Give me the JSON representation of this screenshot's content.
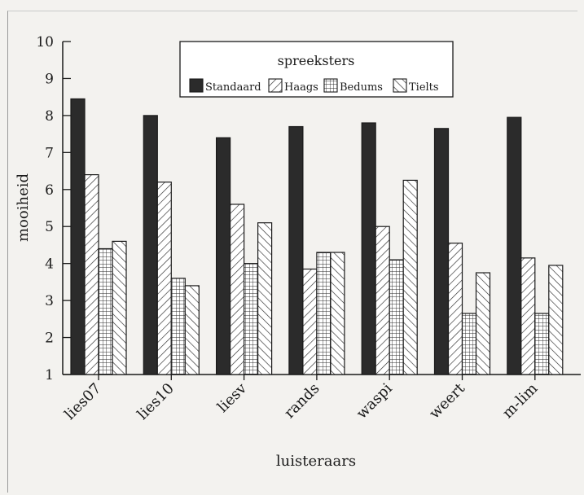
{
  "chart_data": {
    "type": "bar",
    "title": "",
    "xlabel": "luisteraars",
    "ylabel": "mooiheid",
    "ylim": [
      1,
      10
    ],
    "yticks": [
      1,
      2,
      3,
      4,
      5,
      6,
      7,
      8,
      9,
      10
    ],
    "grid": false,
    "legend": {
      "title": "spreeksters",
      "placement": "top-center"
    },
    "categories": [
      "lies07",
      "lies10",
      "liesv",
      "rands",
      "waspi",
      "weert",
      "m-lim"
    ],
    "series": [
      {
        "name": "Standaard",
        "pattern": "solid",
        "color": "#2b2b2b",
        "values": [
          8.45,
          8.0,
          7.4,
          7.7,
          7.8,
          7.65,
          7.95
        ]
      },
      {
        "name": "Haags",
        "pattern": "diagonal-forward",
        "color": "#2b2b2b",
        "values": [
          6.4,
          6.2,
          5.6,
          3.85,
          5.0,
          4.55,
          4.15
        ]
      },
      {
        "name": "Bedums",
        "pattern": "grid",
        "color": "#2b2b2b",
        "values": [
          4.4,
          3.6,
          4.0,
          4.3,
          4.1,
          2.65,
          2.65
        ]
      },
      {
        "name": "Tielts",
        "pattern": "diagonal-backward",
        "color": "#2b2b2b",
        "values": [
          4.6,
          3.4,
          5.1,
          4.3,
          6.25,
          3.75,
          3.95
        ]
      }
    ]
  }
}
